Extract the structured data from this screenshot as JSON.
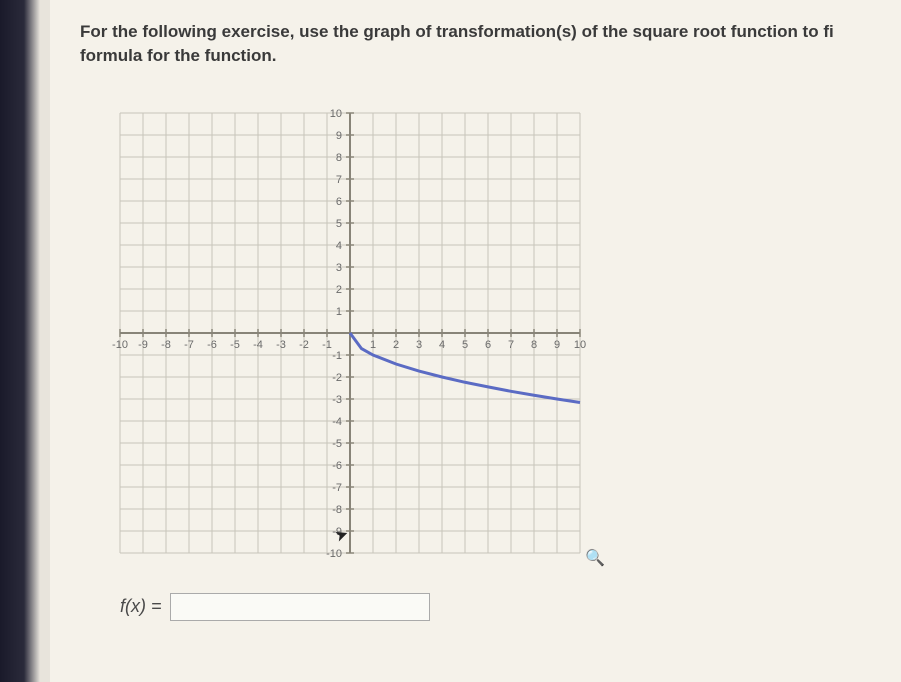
{
  "problem": {
    "line1": "For the following exercise, use the graph of transformation(s) of the square root function to fi",
    "line2": "formula for the function."
  },
  "chart": {
    "type": "line",
    "xlim": [
      -10,
      10
    ],
    "ylim": [
      -10,
      10
    ],
    "xtick_step": 1,
    "ytick_step": 1,
    "grid_color": "#c8c4ba",
    "axis_color": "#888478",
    "background_color": "#f5f2ea",
    "curve_color": "#5b6bc4",
    "curve_width": 3,
    "curve": {
      "start_x": 0,
      "end_x": 10,
      "points": [
        {
          "x": 0,
          "y": 0
        },
        {
          "x": 0.5,
          "y": -0.71
        },
        {
          "x": 1,
          "y": -1
        },
        {
          "x": 2,
          "y": -1.41
        },
        {
          "x": 3,
          "y": -1.73
        },
        {
          "x": 4,
          "y": -2
        },
        {
          "x": 5,
          "y": -2.24
        },
        {
          "x": 6,
          "y": -2.45
        },
        {
          "x": 7,
          "y": -2.65
        },
        {
          "x": 8,
          "y": -2.83
        },
        {
          "x": 9,
          "y": -3
        },
        {
          "x": 10,
          "y": -3.16
        }
      ]
    },
    "x_labels_neg": [
      "-10",
      "-9",
      "-8",
      "-7",
      "-6",
      "-5",
      "-4",
      "-3",
      "-2",
      "-1"
    ],
    "x_labels_pos": [
      "1",
      "2",
      "3",
      "4",
      "5",
      "6",
      "7",
      "8",
      "9",
      "10"
    ],
    "y_labels_pos": [
      "1",
      "2",
      "3",
      "4",
      "5",
      "6",
      "7",
      "8",
      "9",
      "10"
    ],
    "y_labels_neg": [
      "-1",
      "-2",
      "-3",
      "-4",
      "-5",
      "-6",
      "-7",
      "-8",
      "-9",
      "-10"
    ]
  },
  "answer": {
    "label": "f(x) =",
    "value": ""
  },
  "zoom_icon": "🔍"
}
